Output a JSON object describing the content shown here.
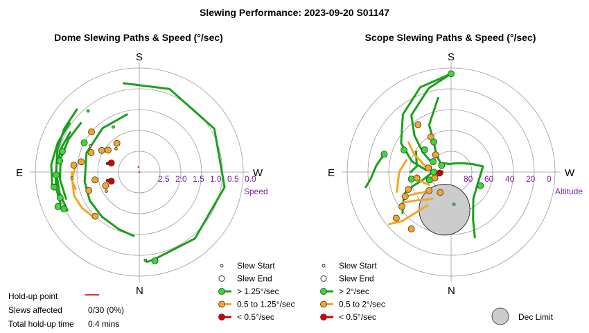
{
  "title": "Slewing Performance: 2023-09-20 S01147",
  "chart_data": [
    {
      "type": "scatter",
      "subtitle": "Dome Slewing Paths & Speed (°/sec)",
      "projection": "polar",
      "compass": {
        "top": "S",
        "bottom": "N",
        "left": "E",
        "right": "W"
      },
      "radial_label": "Speed",
      "radial_ticks": [
        "2.5",
        "2.0",
        "1.5",
        "1.0",
        "0.5",
        "0.0"
      ],
      "rlim": [
        3.0,
        0.0
      ],
      "legend": {
        "placement": "bottom-right",
        "items": [
          {
            "label": "Slew Start",
            "kind": "start"
          },
          {
            "label": "Slew End",
            "kind": "end"
          },
          {
            "label": "> 1.25°/sec",
            "kind": "fast",
            "color": "#1aa01a"
          },
          {
            "label": "0.5 to 1.25°/sec",
            "kind": "mid",
            "color": "#f5a623"
          },
          {
            "label": "< 0.5°/sec",
            "kind": "slow",
            "color": "#d40000"
          }
        ]
      },
      "colors": {
        "fast": "#1aa01a",
        "mid": "#f5a623",
        "slow": "#d40000",
        "fast_fill": "#33dd33"
      },
      "paths": [
        {
          "cls": "fast",
          "pts": [
            [
              12,
              1.7
            ],
            [
              40,
              1.65
            ],
            [
              70,
              1.62
            ],
            [
              100,
              1.6
            ],
            [
              120,
              1.65
            ],
            [
              140,
              1.68
            ],
            [
              160,
              1.75
            ],
            [
              175,
              1.85
            ]
          ]
        },
        {
          "cls": "fast",
          "pts": [
            [
              10,
              2.6
            ],
            [
              -20,
              2.55
            ],
            [
              -60,
              2.5
            ],
            [
              -100,
              2.5
            ],
            [
              -140,
              2.5
            ],
            [
              -170,
              2.55
            ],
            [
              -175,
              2.6
            ]
          ]
        },
        {
          "cls": "fast",
          "pts": [
            [
              45,
              2.55
            ],
            [
              60,
              2.5
            ],
            [
              75,
              2.45
            ],
            [
              90,
              2.4
            ],
            [
              105,
              2.38
            ],
            [
              118,
              2.35
            ]
          ]
        },
        {
          "cls": "fast",
          "pts": [
            [
              50,
              2.2
            ],
            [
              65,
              2.25
            ],
            [
              80,
              2.3
            ],
            [
              95,
              2.3
            ],
            [
              110,
              2.25
            ]
          ]
        },
        {
          "cls": "fast",
          "pts": [
            [
              60,
              2.3
            ],
            [
              72,
              2.35
            ],
            [
              85,
              2.4
            ],
            [
              100,
              2.45
            ],
            [
              112,
              2.45
            ]
          ]
        },
        {
          "cls": "fast",
          "pts": [
            [
              55,
              2.45
            ],
            [
              70,
              2.5
            ],
            [
              85,
              2.55
            ],
            [
              100,
              2.55
            ]
          ]
        },
        {
          "cls": "mid",
          "pts": [
            [
              135,
              1.85
            ],
            [
              122,
              1.95
            ],
            [
              110,
              2.0
            ],
            [
              95,
              1.95
            ],
            [
              85,
              1.85
            ]
          ]
        },
        {
          "cls": "mid",
          "pts": [
            [
              90,
              1.95
            ],
            [
              98,
              1.95
            ],
            [
              105,
              1.9
            ]
          ]
        }
      ],
      "points": [
        {
          "az": -170,
          "r": 2.6,
          "cls": "fast",
          "kind": "end"
        },
        {
          "az": -176,
          "r": 2.55,
          "cls": "fast",
          "kind": "start"
        },
        {
          "az": 62,
          "r": 1.8,
          "cls": "fast",
          "kind": "end"
        },
        {
          "az": 75,
          "r": 2.3,
          "cls": "fast",
          "kind": "end"
        },
        {
          "az": 82,
          "r": 2.32,
          "cls": "fast",
          "kind": "end"
        },
        {
          "az": 92,
          "r": 2.4,
          "cls": "fast",
          "kind": "end"
        },
        {
          "az": 100,
          "r": 2.5,
          "cls": "fast",
          "kind": "end"
        },
        {
          "az": 108,
          "r": 2.4,
          "cls": "fast",
          "kind": "end"
        },
        {
          "az": 116,
          "r": 2.42,
          "cls": "fast",
          "kind": "end"
        },
        {
          "az": 113,
          "r": 2.55,
          "cls": "fast",
          "kind": "end"
        },
        {
          "az": 40,
          "r": 2.3,
          "cls": "fast",
          "kind": "start"
        },
        {
          "az": 30,
          "r": 1.5,
          "cls": "fast",
          "kind": "start"
        },
        {
          "az": 50,
          "r": 1.8,
          "cls": "mid",
          "kind": "end"
        },
        {
          "az": 38,
          "r": 1.05,
          "cls": "mid",
          "kind": "end"
        },
        {
          "az": 45,
          "r": 0.95,
          "cls": "mid",
          "kind": "start"
        },
        {
          "az": 55,
          "r": 1.1,
          "cls": "mid",
          "kind": "end"
        },
        {
          "az": 60,
          "r": 1.25,
          "cls": "mid",
          "kind": "end"
        },
        {
          "az": 68,
          "r": 1.5,
          "cls": "mid",
          "kind": "end"
        },
        {
          "az": 62,
          "r": 1.6,
          "cls": "mid",
          "kind": "start"
        },
        {
          "az": 80,
          "r": 1.7,
          "cls": "mid",
          "kind": "end"
        },
        {
          "az": 84,
          "r": 1.9,
          "cls": "mid",
          "kind": "end"
        },
        {
          "az": 100,
          "r": 1.3,
          "cls": "mid",
          "kind": "end"
        },
        {
          "az": 110,
          "r": 1.55,
          "cls": "mid",
          "kind": "end"
        },
        {
          "az": 112,
          "r": 1.05,
          "cls": "mid",
          "kind": "end"
        },
        {
          "az": 120,
          "r": 1.1,
          "cls": "mid",
          "kind": "start"
        },
        {
          "az": 135,
          "r": 1.8,
          "cls": "mid",
          "kind": "end"
        },
        {
          "az": 95,
          "r": 1.95,
          "cls": "mid",
          "kind": "start"
        },
        {
          "az": 72,
          "r": 0.85,
          "cls": "slow",
          "kind": "end"
        },
        {
          "az": 75,
          "r": 0.95,
          "cls": "slow",
          "kind": "start"
        },
        {
          "az": 108,
          "r": 0.85,
          "cls": "slow",
          "kind": "end"
        },
        {
          "az": 105,
          "r": 0.95,
          "cls": "slow",
          "kind": "start"
        }
      ],
      "holdups": [
        {
          "az": 10,
          "r": 0.15
        },
        {
          "az": 130,
          "r": 0.0
        }
      ]
    },
    {
      "type": "scatter",
      "subtitle": "Scope Slewing Paths & Speed (°/sec)",
      "projection": "polar",
      "compass": {
        "top": "S",
        "bottom": "N",
        "left": "E",
        "right": "W"
      },
      "radial_label": "Altitude",
      "radial_ticks": [
        "80",
        "60",
        "40",
        "20",
        "0"
      ],
      "rlim": [
        90,
        0
      ],
      "legend": {
        "placement": "bottom-right",
        "items": [
          {
            "label": "Slew Start",
            "kind": "start"
          },
          {
            "label": "Slew End",
            "kind": "end"
          },
          {
            "label": "> 2°/sec",
            "kind": "fast",
            "color": "#1aa01a"
          },
          {
            "label": "0.5 to 2°/sec",
            "kind": "mid",
            "color": "#f5a623"
          },
          {
            "label": "< 0.5°/sec",
            "kind": "slow",
            "color": "#d40000"
          }
        ],
        "extra": {
          "label": "Dec Limit",
          "color": "#cccccc"
        }
      },
      "colors": {
        "fast": "#1aa01a",
        "mid": "#f5a623",
        "slow": "#d40000",
        "fast_fill": "#33dd33"
      },
      "dec_limit": {
        "az": 170,
        "alt": 57,
        "radius_deg": 22
      },
      "paths": [
        {
          "cls": "fast",
          "pts": [
            [
              0,
              5
            ],
            [
              20,
              12
            ],
            [
              40,
              25
            ],
            [
              60,
              40
            ],
            [
              75,
              55
            ],
            [
              85,
              68
            ]
          ]
        },
        {
          "cls": "fast",
          "pts": [
            [
              0,
              5
            ],
            [
              15,
              15
            ],
            [
              35,
              30
            ],
            [
              45,
              45
            ],
            [
              55,
              60
            ],
            [
              65,
              72
            ]
          ]
        },
        {
          "cls": "fast",
          "pts": [
            [
              10,
              25
            ],
            [
              25,
              45
            ],
            [
              30,
              60
            ],
            [
              40,
              70
            ],
            [
              55,
              80
            ]
          ]
        },
        {
          "cls": "fast",
          "pts": [
            [
              -80,
              62
            ],
            [
              -70,
              70
            ],
            [
              -50,
              78
            ],
            [
              -20,
              82
            ],
            [
              10,
              83
            ],
            [
              40,
              80
            ]
          ]
        },
        {
          "cls": "fast",
          "pts": [
            [
              -80,
              62
            ],
            [
              -110,
              65
            ],
            [
              -140,
              60
            ],
            [
              -155,
              45
            ],
            [
              -160,
              30
            ]
          ]
        },
        {
          "cls": "fast",
          "pts": [
            [
              130,
              35
            ],
            [
              115,
              45
            ],
            [
              110,
              55
            ],
            [
              105,
              65
            ],
            [
              95,
              72
            ]
          ]
        },
        {
          "cls": "fast",
          "pts": [
            [
              75,
              30
            ],
            [
              85,
              25
            ],
            [
              95,
              20
            ],
            [
              100,
              15
            ]
          ]
        },
        {
          "cls": "fast",
          "pts": [
            [
              60,
              55
            ],
            [
              70,
              58
            ],
            [
              80,
              60
            ],
            [
              90,
              55
            ]
          ]
        },
        {
          "cls": "mid",
          "pts": [
            [
              55,
              45
            ],
            [
              65,
              55
            ],
            [
              70,
              62
            ],
            [
              80,
              68
            ]
          ]
        },
        {
          "cls": "mid",
          "pts": [
            [
              95,
              60
            ],
            [
              105,
              62
            ],
            [
              112,
              65
            ],
            [
              120,
              68
            ]
          ]
        },
        {
          "cls": "mid",
          "pts": [
            [
              118,
              45
            ],
            [
              122,
              55
            ],
            [
              126,
              60
            ],
            [
              130,
              65
            ]
          ]
        },
        {
          "cls": "mid",
          "pts": [
            [
              122,
              40
            ],
            [
              130,
              52
            ],
            [
              138,
              58
            ],
            [
              145,
              62
            ]
          ]
        },
        {
          "cls": "mid",
          "pts": [
            [
              145,
              55
            ],
            [
              135,
              30
            ],
            [
              130,
              20
            ]
          ]
        },
        {
          "cls": "mid",
          "pts": [
            [
              75,
              50
            ],
            [
              90,
              45
            ],
            [
              110,
              40
            ]
          ]
        }
      ],
      "points": [
        {
          "az": 0,
          "alt": 5,
          "cls": "fast",
          "kind": "end"
        },
        {
          "az": -115,
          "alt": 62,
          "cls": "fast",
          "kind": "end"
        },
        {
          "az": -175,
          "alt": 62,
          "cls": "fast",
          "kind": "start"
        },
        {
          "az": 90,
          "alt": 75,
          "cls": "fast",
          "kind": "end"
        },
        {
          "az": 55,
          "alt": 80,
          "cls": "fast",
          "kind": "end"
        },
        {
          "az": 75,
          "alt": 30,
          "cls": "fast",
          "kind": "end"
        },
        {
          "az": 65,
          "alt": 45,
          "cls": "fast",
          "kind": "end"
        },
        {
          "az": 30,
          "alt": 60,
          "cls": "fast",
          "kind": "end"
        },
        {
          "az": 50,
          "alt": 60,
          "cls": "fast",
          "kind": "end"
        },
        {
          "az": 100,
          "alt": 55,
          "cls": "fast",
          "kind": "end"
        },
        {
          "az": 110,
          "alt": 70,
          "cls": "fast",
          "kind": "end"
        },
        {
          "az": 60,
          "alt": 72,
          "cls": "fast",
          "kind": "end"
        },
        {
          "az": 35,
          "alt": 40,
          "cls": "mid",
          "kind": "end"
        },
        {
          "az": 30,
          "alt": 55,
          "cls": "mid",
          "kind": "end"
        },
        {
          "az": 42,
          "alt": 70,
          "cls": "mid",
          "kind": "end"
        },
        {
          "az": 80,
          "alt": 70,
          "cls": "mid",
          "kind": "end"
        },
        {
          "az": 100,
          "alt": 60,
          "cls": "mid",
          "kind": "end"
        },
        {
          "az": 112,
          "alt": 50,
          "cls": "mid",
          "kind": "end"
        },
        {
          "az": 118,
          "alt": 45,
          "cls": "mid",
          "kind": "end"
        },
        {
          "az": 125,
          "alt": 38,
          "cls": "mid",
          "kind": "end"
        },
        {
          "az": 130,
          "alt": 28,
          "cls": "mid",
          "kind": "end"
        },
        {
          "az": 145,
          "alt": 30,
          "cls": "mid",
          "kind": "end"
        },
        {
          "az": 130,
          "alt": 65,
          "cls": "mid",
          "kind": "end"
        },
        {
          "az": 152,
          "alt": 70,
          "cls": "mid",
          "kind": "end"
        },
        {
          "az": 110,
          "alt": 75,
          "cls": "mid",
          "kind": "end"
        },
        {
          "az": 95,
          "alt": 80,
          "cls": "slow",
          "kind": "end"
        },
        {
          "az": 90,
          "alt": 82,
          "cls": "slow",
          "kind": "start"
        }
      ]
    }
  ],
  "stats": {
    "holdup_label": "Hold-up point",
    "slews_label": "Slews affected",
    "slews_value": "0/30 (0%)",
    "total_label": "Total hold-up time",
    "total_value": "0.4 mins"
  }
}
